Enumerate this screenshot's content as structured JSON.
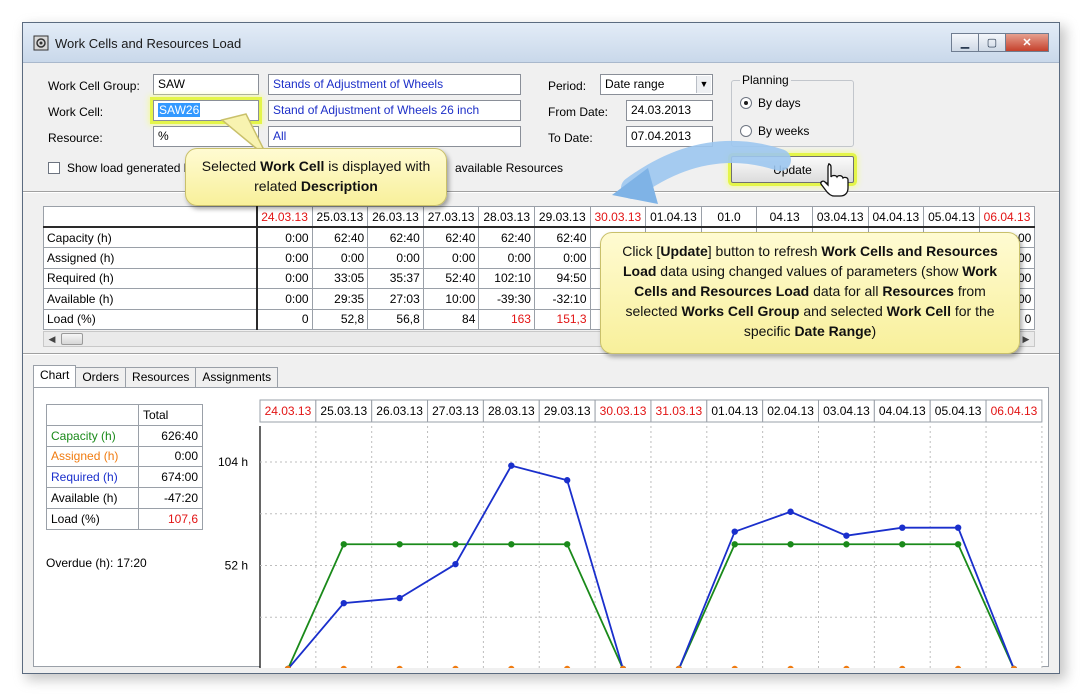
{
  "window": {
    "title": "Work Cells and Resources Load"
  },
  "filters": {
    "work_cell_group": {
      "label": "Work Cell Group:",
      "value": "SAW",
      "description": "Stands of Adjustment of Wheels"
    },
    "work_cell": {
      "label": "Work Cell:",
      "value": "SAW26",
      "description": "Stand of Adjustment of Wheels 26 inch"
    },
    "resource": {
      "label": "Resource:",
      "value": "%",
      "description": "All"
    },
    "show_load_label": "Show load generated b",
    "available_resources_label": "available Resources"
  },
  "period": {
    "label": "Period:",
    "value": "Date range",
    "from_label": "From Date:",
    "from_value": "24.03.2013",
    "to_label": "To Date:",
    "to_value": "07.04.2013"
  },
  "planning": {
    "title": "Planning",
    "by_days": "By days",
    "by_weeks": "By weeks",
    "selected": "by_days"
  },
  "update_button": "Update",
  "load_table": {
    "dates": [
      {
        "d": "24.03.13",
        "weekend": true
      },
      {
        "d": "25.03.13",
        "weekend": false
      },
      {
        "d": "26.03.13",
        "weekend": false
      },
      {
        "d": "27.03.13",
        "weekend": false
      },
      {
        "d": "28.03.13",
        "weekend": false
      },
      {
        "d": "29.03.13",
        "weekend": false
      },
      {
        "d": "30.03.13",
        "weekend": true
      },
      {
        "d": "31.03.13",
        "weekend": true
      },
      {
        "d": "01.04.13",
        "weekend": false
      },
      {
        "d": "02.04.13",
        "weekend": false
      },
      {
        "d": "03.04.13",
        "weekend": false
      },
      {
        "d": "04.04.13",
        "weekend": false
      },
      {
        "d": "05.04.13",
        "weekend": false
      },
      {
        "d": "06.04.13",
        "weekend": true
      }
    ],
    "visible_dates": [
      "24.03.13",
      "25.03.13",
      "26.03.13",
      "27.03.13",
      "28.03.13",
      "29.03.13",
      "30.03.13",
      "01.04.13",
      "01.0",
      "04.13",
      "03.04.13",
      "04.04.13",
      "05.04.13",
      "06.04.13"
    ],
    "rows": [
      {
        "label": "Capacity (h)",
        "values": [
          "0:00",
          "62:40",
          "62:40",
          "62:40",
          "62:40",
          "62:40",
          "0:00"
        ],
        "last": ":00"
      },
      {
        "label": "Assigned (h)",
        "values": [
          "0:00",
          "0:00",
          "0:00",
          "0:00",
          "0:00",
          "0:00"
        ],
        "last": "00"
      },
      {
        "label": "Required (h)",
        "values": [
          "0:00",
          "33:05",
          "35:37",
          "52:40",
          "102:10",
          "94:50"
        ],
        "last": "00"
      },
      {
        "label": "Available (h)",
        "values": [
          "0:00",
          "29:35",
          "27:03",
          "10:00",
          "-39:30",
          "-32:10"
        ],
        "last": "00"
      },
      {
        "label": "Load (%)",
        "values": [
          "0",
          "52,8",
          "56,8",
          "84",
          "163",
          "151,3"
        ],
        "last": "0"
      }
    ]
  },
  "tabs": [
    "Chart",
    "Orders",
    "Resources",
    "Assignments"
  ],
  "totals": {
    "header": "Total",
    "rows": [
      {
        "label": "Capacity (h)",
        "value": "626:40",
        "color": "#1a8a1a"
      },
      {
        "label": "Assigned (h)",
        "value": "0:00",
        "color": "#f07b10"
      },
      {
        "label": "Required (h)",
        "value": "674:00",
        "color": "#1a2fcc"
      },
      {
        "label": "Available (h)",
        "value": "-47:20",
        "color": "#000000"
      },
      {
        "label": "Load (%)",
        "value": "107,6",
        "color": "#000000",
        "value_color": "#e21414"
      }
    ],
    "overdue": "Overdue (h): 17:20"
  },
  "chart_data": {
    "type": "line",
    "categories": [
      "24.03.13",
      "25.03.13",
      "26.03.13",
      "27.03.13",
      "28.03.13",
      "29.03.13",
      "30.03.13",
      "31.03.13",
      "01.04.13",
      "02.04.13",
      "03.04.13",
      "04.04.13",
      "05.04.13",
      "06.04.13"
    ],
    "weekend": [
      true,
      false,
      false,
      false,
      false,
      false,
      true,
      true,
      false,
      false,
      false,
      false,
      false,
      true
    ],
    "y_tick_labels": [
      "104 h",
      "52 h"
    ],
    "ylim": [
      0,
      104
    ],
    "grid": true,
    "series": [
      {
        "color": "#1a8a1a",
        "values": [
          0,
          62.67,
          62.67,
          62.67,
          62.67,
          62.67,
          0,
          0,
          62.67,
          62.67,
          62.67,
          62.67,
          62.67,
          0
        ]
      },
      {
        "color": "#1a2fcc",
        "values": [
          0,
          33.08,
          35.62,
          52.67,
          102.17,
          94.83,
          0,
          0,
          69,
          79,
          67,
          71,
          71,
          0
        ]
      },
      {
        "color": "#f07b10",
        "values": [
          0,
          0,
          0,
          0,
          0,
          0,
          0,
          0,
          0,
          0,
          0,
          0,
          0,
          0
        ]
      }
    ]
  },
  "callouts": {
    "work_cell": "Selected <b>Work Cell</b> is displayed with related <b>Description</b>",
    "update": "Click [<b>Update</b>] button to refresh <b>Work Cells and Resources Load</b> data using changed values of parameters (show <b>Work Cells and Resources Load</b> data for all <b>Resources</b> from selected <b>Works Cell Group</b> and selected <b>Work Cell</b> for the specific <b>Date Range</b>)"
  }
}
